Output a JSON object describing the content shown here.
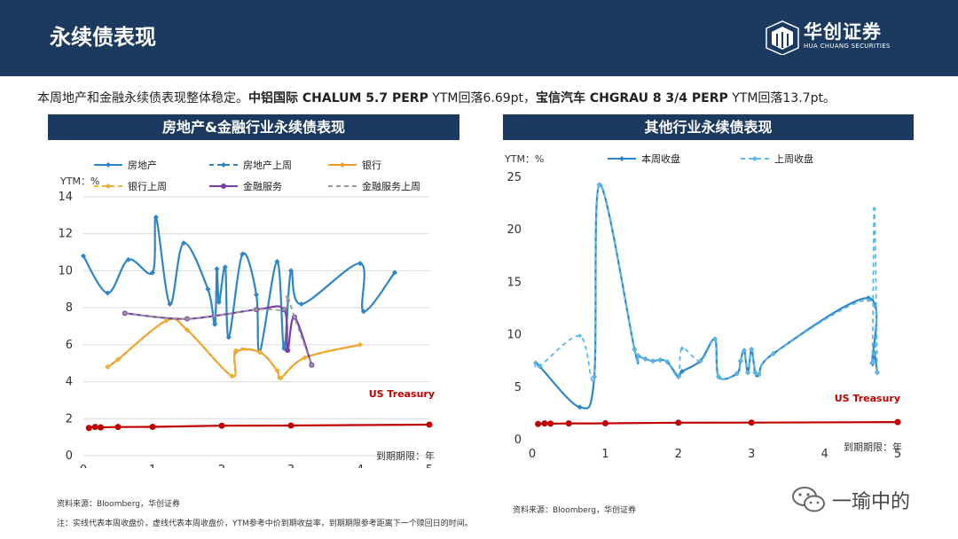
{
  "header": {
    "title": "永续债表现",
    "logo_name": "华创证券",
    "logo_sub": "HUA CHUANG SECURITIES"
  },
  "summary": {
    "part1": "本周地产和金融永续债表现整体稳定。",
    "bond1": "中铝国际 CHALUM 5.7 PERP",
    "part2": " YTM回落6.69pt，",
    "bond2": "宝信汽车 CHGRAU 8 3/4 PERP",
    "part3": " YTM回落13.7pt。"
  },
  "panels": {
    "left_title": "房地产&金融行业永续债表现",
    "right_title": "其他行业永续债表现"
  },
  "footnotes": {
    "source_left": "资料来源：Bloomberg，华创证券",
    "note": "注：实线代表本周收盘价，虚线代表本周收盘价，YTM参考中价到期收益率，到期期限参考距离下一个赎回日的时间。",
    "source_right": "资料来源：Bloomberg，华创证券"
  },
  "watermark": "一瑜中的",
  "chart_data": [
    {
      "type": "line",
      "ylabel": "YTM：%",
      "xlabel": "到期期限：年",
      "xlim": [
        0,
        5
      ],
      "ylim": [
        0,
        14
      ],
      "xticks": [
        0,
        1,
        2,
        3,
        4,
        5
      ],
      "yticks": [
        0,
        2,
        4,
        6,
        8,
        10,
        12,
        14
      ],
      "grid": true,
      "legend_position": "top",
      "annotation": "US Treasury",
      "series": [
        {
          "name": "房地产",
          "color": "#2e86c8",
          "style": "solid",
          "x": [
            0.0,
            0.35,
            0.65,
            1.0,
            1.05,
            1.25,
            1.45,
            1.8,
            1.9,
            1.93,
            1.96,
            2.05,
            2.1,
            2.3,
            2.5,
            2.55,
            2.8,
            2.9,
            3.0,
            3.15,
            4.0,
            4.05,
            4.5
          ],
          "y": [
            10.8,
            8.8,
            10.6,
            9.9,
            12.9,
            8.2,
            11.5,
            9.0,
            7.1,
            10.1,
            8.3,
            10.2,
            6.4,
            10.9,
            8.7,
            5.6,
            10.5,
            5.8,
            10.0,
            8.2,
            10.4,
            7.8,
            9.9
          ]
        },
        {
          "name": "房地产上周",
          "color": "#2e86c8",
          "style": "dashed",
          "x": [
            0.0,
            0.35,
            0.65,
            1.0,
            1.05,
            1.25,
            1.45,
            1.8,
            1.9,
            1.93,
            1.96,
            2.05,
            2.1,
            2.3,
            2.5,
            2.55,
            2.8,
            2.9,
            3.0,
            3.15,
            4.0,
            4.05,
            4.5
          ],
          "y": [
            10.8,
            8.8,
            10.6,
            9.9,
            12.9,
            8.2,
            11.5,
            9.0,
            7.2,
            10.1,
            8.4,
            10.2,
            6.4,
            10.9,
            8.7,
            5.6,
            10.5,
            5.9,
            10.0,
            8.2,
            10.4,
            7.8,
            9.9
          ]
        },
        {
          "name": "银行",
          "color": "#f09a2a",
          "style": "solid",
          "x": [
            0.35,
            0.5,
            1.2,
            1.5,
            2.15,
            2.2,
            2.55,
            2.8,
            2.85,
            3.2,
            4.0
          ],
          "y": [
            4.8,
            5.2,
            7.3,
            6.8,
            4.3,
            5.6,
            5.6,
            4.6,
            4.2,
            5.3,
            6.0
          ]
        },
        {
          "name": "银行上周",
          "color": "#f0b030",
          "style": "dashed",
          "x": [
            0.35,
            0.5,
            1.2,
            1.5,
            2.15,
            2.2,
            2.55,
            2.8,
            2.85,
            3.2,
            4.0
          ],
          "y": [
            4.8,
            5.2,
            7.3,
            6.8,
            4.3,
            5.7,
            5.6,
            4.6,
            4.2,
            5.3,
            6.0
          ]
        },
        {
          "name": "金融服务",
          "color": "#7a3ea8",
          "style": "solid",
          "x": [
            0.6,
            1.5,
            2.5,
            2.9,
            2.95,
            3.05,
            3.3
          ],
          "y": [
            7.7,
            7.4,
            7.9,
            7.9,
            5.7,
            7.5,
            4.9
          ]
        },
        {
          "name": "金融服务上周",
          "color": "#999999",
          "style": "dashed",
          "x": [
            0.6,
            1.5,
            2.5,
            2.9,
            2.95,
            3.05,
            3.3
          ],
          "y": [
            7.7,
            7.4,
            7.9,
            7.9,
            8.6,
            7.5,
            4.9
          ]
        },
        {
          "color": "#c00000",
          "style": "solid",
          "x": [
            0.08,
            0.17,
            0.25,
            0.5,
            1.0,
            2.0,
            3.0,
            5.0
          ],
          "y": [
            1.5,
            1.55,
            1.53,
            1.55,
            1.56,
            1.62,
            1.63,
            1.68
          ]
        }
      ]
    },
    {
      "type": "line",
      "ylabel": "YTM：%",
      "xlabel": "到期期限：年",
      "xlim": [
        0,
        5
      ],
      "ylim": [
        0,
        25
      ],
      "xticks": [
        0,
        1,
        2,
        3,
        4,
        5
      ],
      "yticks": [
        0,
        5,
        10,
        15,
        20,
        25
      ],
      "grid": false,
      "legend_position": "top",
      "annotation": "US Treasury",
      "series": [
        {
          "name": "本周收盘",
          "color": "#2e86c8",
          "style": "solid",
          "x": [
            0.05,
            0.1,
            0.65,
            0.85,
            0.92,
            1.4,
            1.45,
            1.55,
            1.65,
            1.75,
            1.85,
            2.0,
            2.05,
            2.3,
            2.5,
            2.55,
            2.8,
            2.85,
            2.9,
            2.95,
            3.0,
            3.05,
            3.1,
            3.3,
            4.6,
            4.65,
            4.68,
            4.72
          ],
          "y": [
            7.3,
            7.0,
            3.1,
            6.0,
            24.3,
            8.6,
            8.0,
            7.7,
            7.5,
            7.6,
            7.4,
            6.0,
            6.5,
            7.5,
            9.6,
            6.0,
            6.3,
            7.5,
            8.5,
            6.4,
            8.6,
            6.4,
            6.2,
            8.2,
            13.5,
            7.3,
            8.3,
            6.4
          ]
        },
        {
          "name": "上周收盘",
          "color": "#5bb8e8",
          "style": "dashed",
          "x": [
            0.05,
            0.1,
            0.65,
            0.85,
            0.92,
            1.4,
            1.45,
            1.55,
            1.65,
            1.75,
            1.85,
            2.0,
            2.05,
            2.3,
            2.5,
            2.55,
            2.8,
            2.85,
            2.9,
            2.95,
            3.0,
            3.05,
            3.1,
            3.3,
            4.6,
            4.65,
            4.68,
            4.72
          ],
          "y": [
            7.3,
            7.0,
            9.9,
            6.0,
            24.3,
            8.6,
            8.0,
            7.7,
            7.5,
            7.6,
            7.4,
            6.0,
            8.7,
            7.5,
            9.6,
            6.0,
            6.3,
            7.5,
            8.5,
            6.4,
            8.6,
            6.4,
            6.2,
            8.2,
            13.3,
            7.3,
            22.0,
            6.4
          ]
        },
        {
          "color": "#c00000",
          "style": "solid",
          "x": [
            0.08,
            0.17,
            0.25,
            0.5,
            1.0,
            2.0,
            3.0,
            5.0
          ],
          "y": [
            1.5,
            1.55,
            1.53,
            1.55,
            1.56,
            1.62,
            1.63,
            1.68
          ]
        }
      ]
    }
  ]
}
